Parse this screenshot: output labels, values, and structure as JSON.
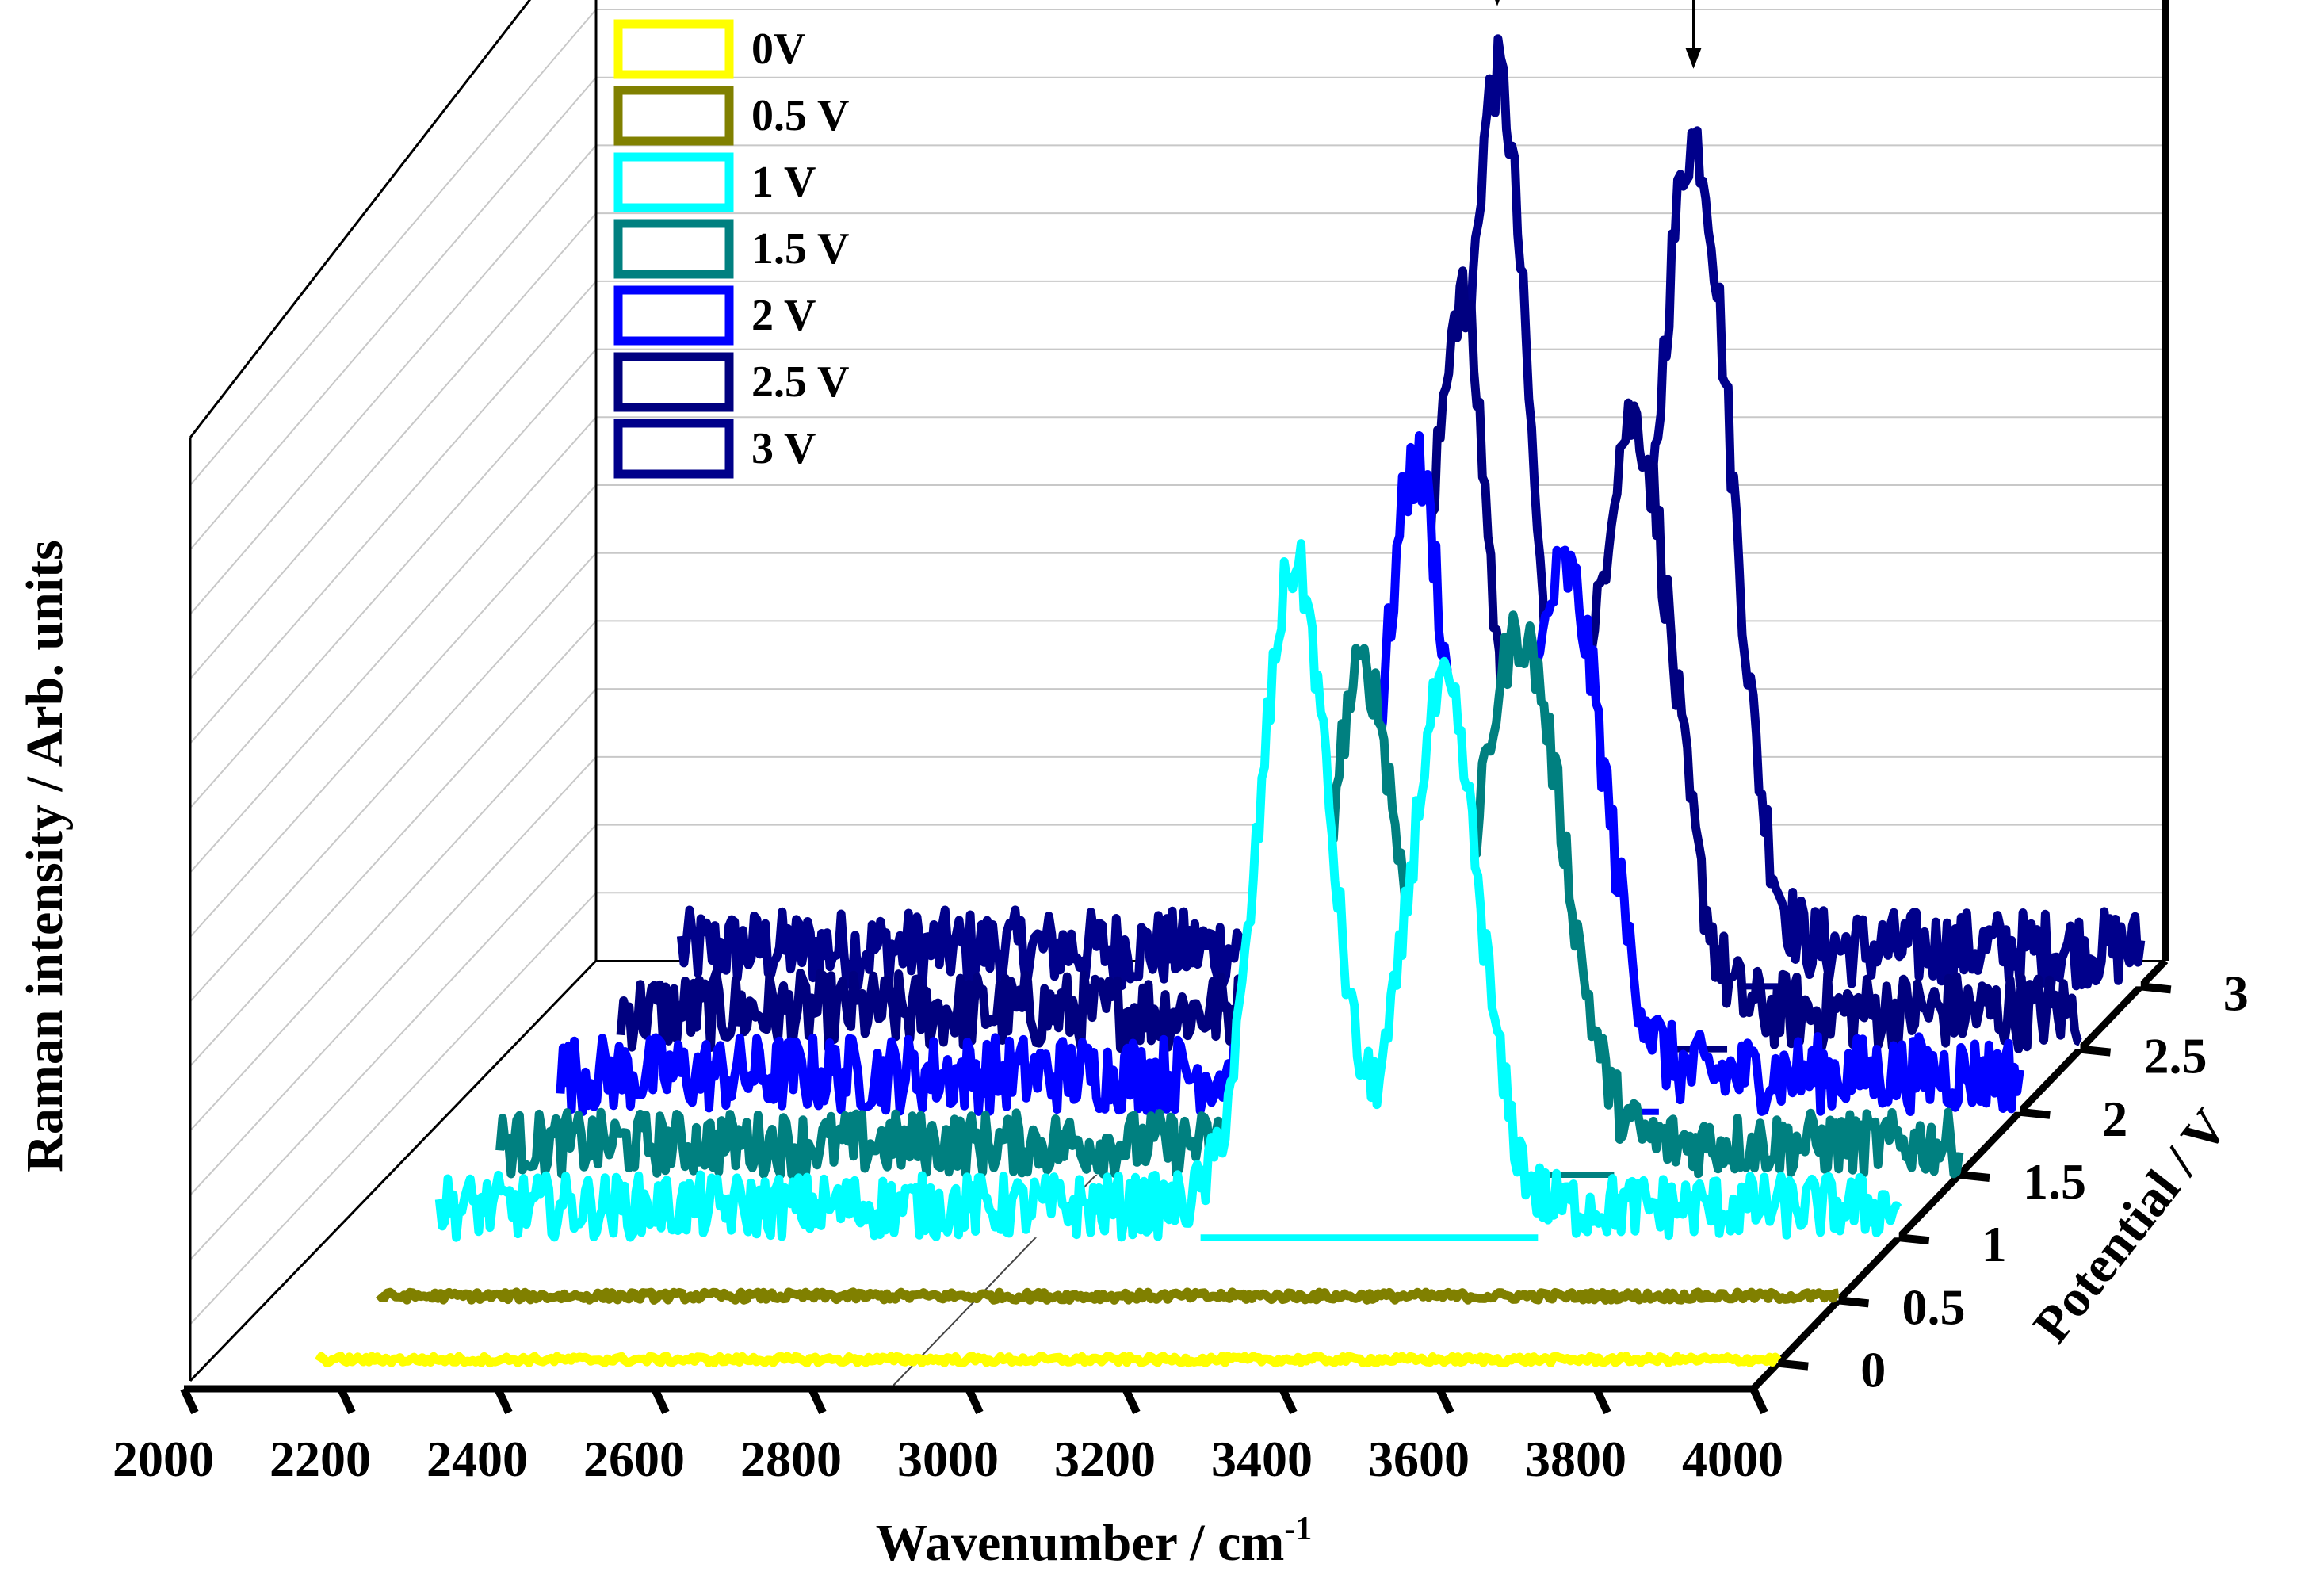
{
  "chart_data": {
    "type": "line",
    "subtype": "3d-waterfall",
    "xlabel": "Wavenumber / cm",
    "xlabel_sup": "-1",
    "ylabel": "Raman intensity / Arb. units",
    "zlabel": "Potential / V",
    "xlim": [
      2000,
      4000
    ],
    "x_ticks": [
      2000,
      2200,
      2400,
      2600,
      2800,
      3000,
      3200,
      3400,
      3600,
      3800,
      4000
    ],
    "x_tick_labels": [
      "2000",
      "2200",
      "2400",
      "2600",
      "2800",
      "3000",
      "3200",
      "3400",
      "3600",
      "3800",
      "4000"
    ],
    "z_ticks": [
      0,
      0.5,
      1,
      1.5,
      2,
      2.5,
      3
    ],
    "z_tick_labels": [
      "0",
      "0.5",
      "1",
      "1.5",
      "2",
      "2.5",
      "3"
    ],
    "grid": true,
    "legend_position": "top-left",
    "annotations": [
      {
        "type": "arrow",
        "x": 3180,
        "series": "3 V",
        "label": ""
      },
      {
        "type": "arrow",
        "x": 3430,
        "series": "3 V",
        "label": ""
      }
    ],
    "series": [
      {
        "name": "0V",
        "potential": 0,
        "color": "#ffff00",
        "noise": 0.05,
        "peaks": []
      },
      {
        "name": "0.5 V",
        "potential": 0.5,
        "color": "#808000",
        "noise": 0.06,
        "peaks": []
      },
      {
        "name": "1 V",
        "potential": 1,
        "color": "#00ffff",
        "noise": 0.45,
        "peaks": [
          {
            "center": 3230,
            "height": 9.2,
            "width": 45
          },
          {
            "center": 3420,
            "height": 7.4,
            "width": 45
          }
        ]
      },
      {
        "name": "1.5 V",
        "potential": 1.5,
        "color": "#008080",
        "noise": 0.45,
        "peaks": [
          {
            "center": 3240,
            "height": 6.8,
            "width": 45
          },
          {
            "center": 3440,
            "height": 7.3,
            "width": 55
          }
        ]
      },
      {
        "name": "2 V",
        "potential": 2,
        "color": "#0000ff",
        "noise": 0.55,
        "peaks": [
          {
            "center": 3230,
            "height": 8.7,
            "width": 42
          },
          {
            "center": 3420,
            "height": 7.2,
            "width": 50
          }
        ]
      },
      {
        "name": "2.5 V",
        "potential": 2.5,
        "color": "#000080",
        "noise": 0.55,
        "peaks": [
          {
            "center": 3210,
            "height": 10.2,
            "width": 40
          },
          {
            "center": 3430,
            "height": 8.5,
            "width": 50
          }
        ]
      },
      {
        "name": "3 V",
        "potential": 3,
        "color": "#00008b",
        "noise": 0.55,
        "peaks": [
          {
            "center": 3180,
            "height": 12.5,
            "width": 42
          },
          {
            "center": 3430,
            "height": 11.6,
            "width": 48
          }
        ]
      }
    ]
  }
}
